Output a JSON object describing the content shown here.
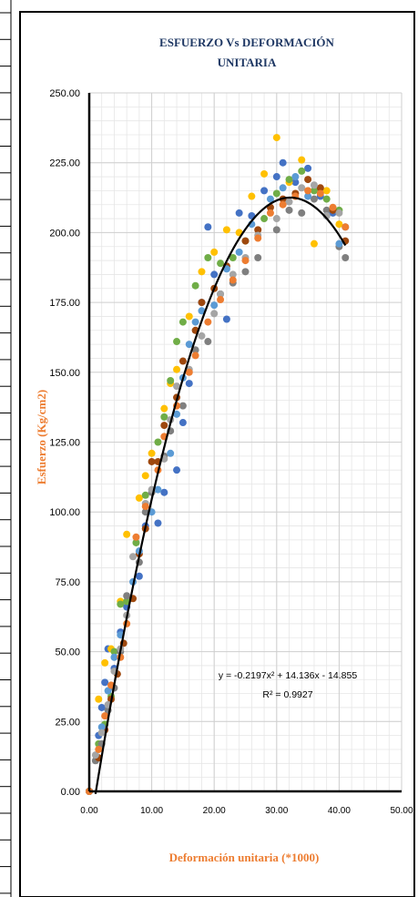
{
  "chart_data": {
    "type": "scatter",
    "title": [
      "ESFUERZO Vs DEFORMACIÓN",
      "UNITARIA"
    ],
    "xlabel": "Deformación unitaria (*1000)",
    "ylabel": "Esfuerzo (Kg/cm2)",
    "xlim": [
      0,
      50
    ],
    "ylim": [
      0,
      250
    ],
    "x_ticks": [
      "0.00",
      "10.00",
      "20.00",
      "30.00",
      "40.00",
      "50.00"
    ],
    "y_ticks": [
      "0.00",
      "25.00",
      "50.00",
      "75.00",
      "100.00",
      "125.00",
      "150.00",
      "175.00",
      "200.00",
      "225.00",
      "250.00"
    ],
    "grid": true,
    "legend": "none",
    "trendline": {
      "equation": "y = -0.2197x² + 14.136x - 14.855",
      "r2": "R² = 0.9927",
      "coefficients": [
        -0.2197,
        14.136,
        -14.855
      ],
      "x_range": [
        1,
        41
      ],
      "color": "#000000"
    },
    "colors": [
      "#4472c4",
      "#ffc000",
      "#70ad47",
      "#7f7f7f",
      "#9e480e",
      "#5b9bd5",
      "#a5a5a5",
      "#ed7d31"
    ],
    "series": [
      {
        "color": "#4472c4",
        "points": [
          [
            0,
            0
          ],
          [
            1.5,
            20
          ],
          [
            2,
            30
          ],
          [
            2.5,
            39
          ],
          [
            3,
            51
          ],
          [
            4,
            44
          ],
          [
            5,
            57
          ],
          [
            6,
            66
          ],
          [
            8,
            77
          ],
          [
            9,
            95
          ],
          [
            11,
            96
          ],
          [
            12,
            107
          ],
          [
            14,
            115
          ],
          [
            15,
            132
          ],
          [
            16,
            146
          ],
          [
            18,
            175
          ],
          [
            19,
            202
          ],
          [
            20,
            185
          ],
          [
            22,
            169
          ],
          [
            24,
            207
          ],
          [
            26,
            206
          ],
          [
            28,
            215
          ],
          [
            30,
            220
          ],
          [
            31,
            225
          ],
          [
            33,
            218
          ],
          [
            35,
            223
          ],
          [
            37,
            213
          ],
          [
            39,
            207
          ],
          [
            41,
            202
          ]
        ]
      },
      {
        "color": "#ffc000",
        "points": [
          [
            0,
            0
          ],
          [
            1.5,
            33
          ],
          [
            2.5,
            46
          ],
          [
            3.5,
            51
          ],
          [
            5,
            68
          ],
          [
            6,
            92
          ],
          [
            8,
            105
          ],
          [
            9,
            113
          ],
          [
            10,
            121
          ],
          [
            12,
            137
          ],
          [
            13,
            146
          ],
          [
            14,
            151
          ],
          [
            16,
            170
          ],
          [
            18,
            186
          ],
          [
            20,
            193
          ],
          [
            22,
            201
          ],
          [
            24,
            200
          ],
          [
            26,
            213
          ],
          [
            28,
            221
          ],
          [
            30,
            234
          ],
          [
            32,
            218
          ],
          [
            34,
            226
          ],
          [
            36,
            196
          ],
          [
            38,
            215
          ],
          [
            40,
            203
          ]
        ]
      },
      {
        "color": "#70ad47",
        "points": [
          [
            0,
            0
          ],
          [
            1.5,
            17
          ],
          [
            2.5,
            24
          ],
          [
            3.5,
            34
          ],
          [
            4,
            50
          ],
          [
            5,
            67
          ],
          [
            6,
            68
          ],
          [
            7.5,
            89
          ],
          [
            9,
            106
          ],
          [
            11,
            125
          ],
          [
            12,
            134
          ],
          [
            13,
            147
          ],
          [
            14,
            161
          ],
          [
            15,
            168
          ],
          [
            17,
            181
          ],
          [
            19,
            191
          ],
          [
            21,
            189
          ],
          [
            23,
            191
          ],
          [
            25,
            197
          ],
          [
            28,
            205
          ],
          [
            30,
            214
          ],
          [
            32,
            219
          ],
          [
            34,
            222
          ],
          [
            36,
            215
          ],
          [
            38,
            212
          ],
          [
            40,
            208
          ]
        ]
      },
      {
        "color": "#7f7f7f",
        "points": [
          [
            0,
            0
          ],
          [
            1,
            11
          ],
          [
            2,
            17
          ],
          [
            3,
            29
          ],
          [
            4,
            37
          ],
          [
            5,
            50
          ],
          [
            6,
            70
          ],
          [
            8,
            82
          ],
          [
            9,
            100
          ],
          [
            10,
            107
          ],
          [
            12,
            120
          ],
          [
            13,
            129
          ],
          [
            15,
            138
          ],
          [
            17,
            158
          ],
          [
            19,
            161
          ],
          [
            21,
            178
          ],
          [
            23,
            182
          ],
          [
            25,
            186
          ],
          [
            27,
            191
          ],
          [
            30,
            201
          ],
          [
            32,
            208
          ],
          [
            34,
            207
          ],
          [
            36,
            212
          ],
          [
            38,
            208
          ],
          [
            40,
            195
          ],
          [
            41,
            191
          ]
        ]
      },
      {
        "color": "#9e480e",
        "points": [
          [
            0,
            0
          ],
          [
            1.5,
            12
          ],
          [
            2.5,
            22
          ],
          [
            3.5,
            33
          ],
          [
            4.5,
            42
          ],
          [
            5.5,
            53
          ],
          [
            7,
            69
          ],
          [
            8,
            85
          ],
          [
            9,
            94
          ],
          [
            10,
            118
          ],
          [
            11,
            118
          ],
          [
            12,
            131
          ],
          [
            14,
            141
          ],
          [
            15,
            154
          ],
          [
            17,
            165
          ],
          [
            18,
            175
          ],
          [
            20,
            180
          ],
          [
            22,
            188
          ],
          [
            25,
            197
          ],
          [
            27,
            201
          ],
          [
            29,
            209
          ],
          [
            31,
            212
          ],
          [
            33,
            214
          ],
          [
            35,
            219
          ],
          [
            37,
            216
          ],
          [
            39,
            208
          ],
          [
            41,
            197
          ]
        ]
      },
      {
        "color": "#5b9bd5",
        "points": [
          [
            0,
            0
          ],
          [
            2,
            23
          ],
          [
            3,
            36
          ],
          [
            4,
            48
          ],
          [
            5,
            56
          ],
          [
            7,
            75
          ],
          [
            8,
            86
          ],
          [
            10,
            100
          ],
          [
            11,
            108
          ],
          [
            13,
            121
          ],
          [
            14,
            135
          ],
          [
            15,
            148
          ],
          [
            16,
            160
          ],
          [
            17,
            168
          ],
          [
            18,
            172
          ],
          [
            20,
            174
          ],
          [
            22,
            187
          ],
          [
            24,
            193
          ],
          [
            26,
            203
          ],
          [
            29,
            212
          ],
          [
            31,
            216
          ],
          [
            33,
            220
          ],
          [
            35,
            213
          ],
          [
            38,
            206
          ],
          [
            40,
            196
          ]
        ]
      },
      {
        "color": "#a5a5a5",
        "points": [
          [
            0,
            0
          ],
          [
            1,
            13
          ],
          [
            2,
            21
          ],
          [
            3,
            31
          ],
          [
            4,
            43
          ],
          [
            5,
            51
          ],
          [
            6,
            63
          ],
          [
            7,
            84
          ],
          [
            9,
            103
          ],
          [
            10,
            108
          ],
          [
            12,
            119
          ],
          [
            13,
            133
          ],
          [
            14,
            145
          ],
          [
            16,
            151
          ],
          [
            18,
            163
          ],
          [
            20,
            171
          ],
          [
            21,
            178
          ],
          [
            23,
            185
          ],
          [
            25,
            191
          ],
          [
            27,
            199
          ],
          [
            30,
            205
          ],
          [
            32,
            211
          ],
          [
            34,
            216
          ],
          [
            36,
            217
          ],
          [
            38,
            206
          ],
          [
            40,
            207
          ]
        ]
      },
      {
        "color": "#ed7d31",
        "points": [
          [
            0,
            0
          ],
          [
            1.5,
            15
          ],
          [
            2.5,
            27
          ],
          [
            3.5,
            38
          ],
          [
            5,
            48
          ],
          [
            6,
            60
          ],
          [
            7.5,
            91
          ],
          [
            9,
            102
          ],
          [
            11,
            115
          ],
          [
            12,
            127
          ],
          [
            14,
            138
          ],
          [
            16,
            150
          ],
          [
            17,
            156
          ],
          [
            19,
            168
          ],
          [
            21,
            176
          ],
          [
            23,
            183
          ],
          [
            25,
            190
          ],
          [
            27,
            198
          ],
          [
            29,
            207
          ],
          [
            31,
            210
          ],
          [
            33,
            213
          ],
          [
            35,
            215
          ],
          [
            37,
            214
          ],
          [
            39,
            209
          ],
          [
            41,
            202
          ]
        ]
      }
    ]
  }
}
